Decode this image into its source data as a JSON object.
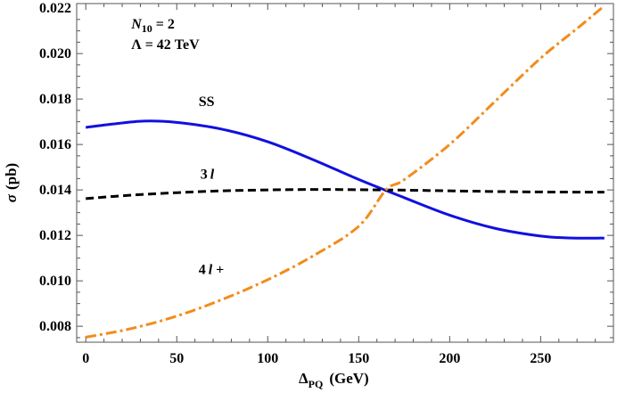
{
  "chart_data": {
    "type": "line",
    "xlabel_main": "Δ",
    "xlabel_sub": "PQ",
    "xlabel_units": "(GeV)",
    "ylabel_symbol": "σ",
    "ylabel_units": "(pb)",
    "xlim": [
      -5,
      290
    ],
    "ylim": [
      0.0073,
      0.0222
    ],
    "x_ticks": [
      0,
      50,
      100,
      150,
      200,
      250
    ],
    "x_tick_labels": [
      "0",
      "50",
      "100",
      "150",
      "200",
      "250"
    ],
    "y_ticks": [
      0.008,
      0.01,
      0.012,
      0.014,
      0.016,
      0.018,
      0.02,
      0.022
    ],
    "y_tick_labels": [
      "0.008",
      "0.010",
      "0.012",
      "0.014",
      "0.016",
      "0.018",
      "0.020",
      "0.022"
    ],
    "grid": false,
    "annotations": [
      {
        "id": "n10",
        "main": "N",
        "sub": "10",
        "rest": " = 2",
        "x": 25,
        "y": 0.0211
      },
      {
        "id": "lambda",
        "main": "Λ = 42 TeV",
        "x": 25,
        "y": 0.0202
      },
      {
        "id": "ss",
        "main": "SS",
        "x": 62,
        "y": 0.0177
      },
      {
        "id": "3l",
        "main": "3",
        "italic": "l",
        "x": 63,
        "y": 0.0145
      },
      {
        "id": "4l",
        "main": "4",
        "italic": "l",
        "rest": " +",
        "x": 62,
        "y": 0.0103
      }
    ],
    "series": [
      {
        "name": "SS",
        "color": "#1010e0",
        "style": "solid",
        "x": [
          0,
          15,
          32,
          50,
          75,
          100,
          125,
          150,
          175,
          200,
          225,
          250,
          265,
          285
        ],
        "y": [
          0.01675,
          0.0169,
          0.01703,
          0.01697,
          0.01667,
          0.01612,
          0.01533,
          0.01446,
          0.01366,
          0.01289,
          0.01231,
          0.01197,
          0.01189,
          0.01188
        ]
      },
      {
        "name": "3l",
        "color": "#000000",
        "style": "dashed",
        "x": [
          0,
          25,
          50,
          75,
          100,
          125,
          150,
          175,
          200,
          225,
          250,
          285
        ],
        "y": [
          0.01362,
          0.01377,
          0.01388,
          0.01396,
          0.014,
          0.01402,
          0.01401,
          0.01399,
          0.01396,
          0.01393,
          0.01391,
          0.0139
        ]
      },
      {
        "name": "4l+",
        "color": "#f28c1c",
        "style": "dashdot",
        "x": [
          0,
          25,
          50,
          75,
          100,
          125,
          150,
          165,
          175,
          200,
          225,
          250,
          270,
          285
        ],
        "y": [
          0.00752,
          0.0079,
          0.00845,
          0.00918,
          0.01005,
          0.0111,
          0.0124,
          0.014,
          0.01445,
          0.016,
          0.0179,
          0.0198,
          0.0211,
          0.0221
        ]
      }
    ]
  }
}
